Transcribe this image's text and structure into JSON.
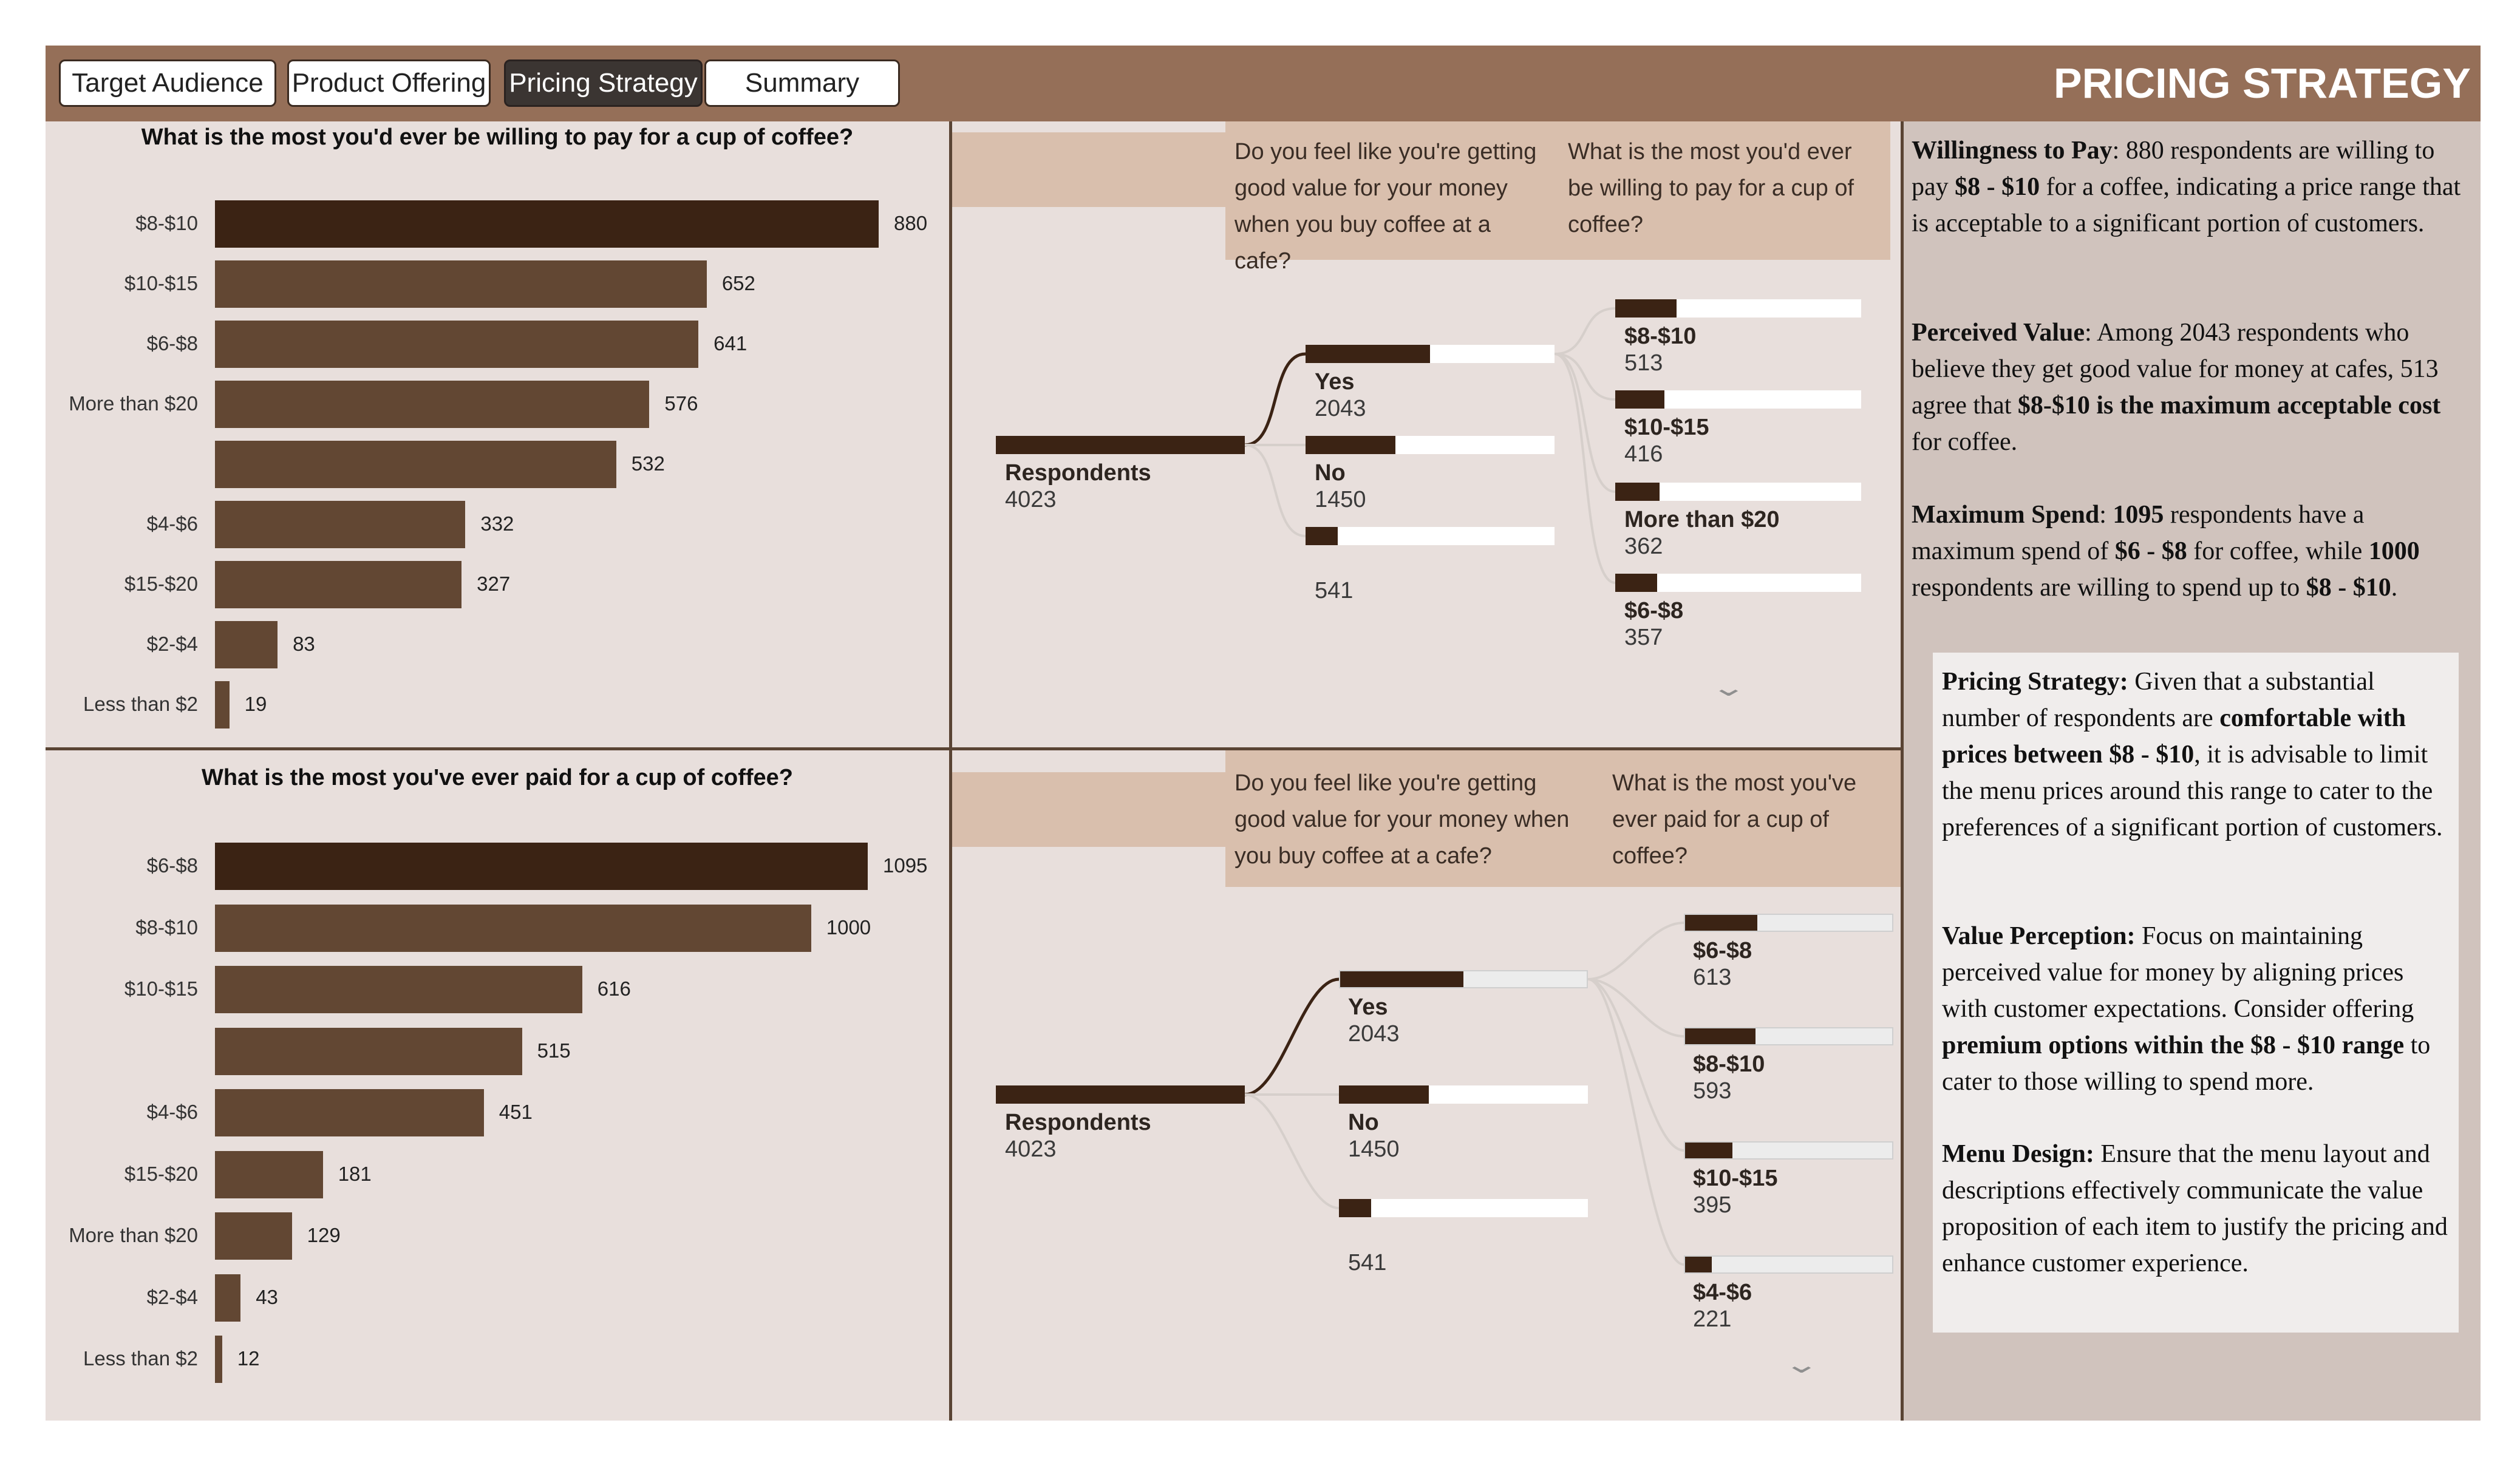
{
  "tabs": [
    {
      "label": "Target Audience",
      "active": false
    },
    {
      "label": "Product Offering",
      "active": false
    },
    {
      "label": "Pricing Strategy",
      "active": true
    },
    {
      "label": "Summary",
      "active": false
    }
  ],
  "page_title": "PRICING STRATEGY",
  "colors": {
    "header": "#956F58",
    "panel": "#E8DFDC",
    "sidebar": "#D0C3BD",
    "bar": "#624733",
    "bar_top": "#3B2314",
    "tree_header": "#D9BFAD"
  },
  "chart_data": [
    {
      "type": "bar",
      "title": "What is the most you'd ever be willing to pay for a cup of coffee?",
      "categories": [
        "$8-$10",
        "$10-$15",
        "$6-$8",
        "More than $20",
        "",
        "$4-$6",
        "$15-$20",
        "$2-$4",
        "Less than $2"
      ],
      "values": [
        880,
        652,
        641,
        576,
        532,
        332,
        327,
        83,
        19
      ],
      "orientation": "horizontal"
    },
    {
      "type": "bar",
      "title": "What is the most you've ever paid for a cup of coffee?",
      "categories": [
        "$6-$8",
        "$8-$10",
        "$10-$15",
        "",
        "$4-$6",
        "$15-$20",
        "More than $20",
        "$2-$4",
        "Less than $2"
      ],
      "values": [
        1095,
        1000,
        616,
        515,
        451,
        181,
        129,
        43,
        12
      ],
      "orientation": "horizontal"
    }
  ],
  "tree1": {
    "header_col1": "Do you feel like you're getting good value for your money when you buy coffee at a cafe?",
    "header_col2": "What is the most you'd ever be willing to pay for a cup of coffee?",
    "root": {
      "label": "Respondents",
      "value": "4023"
    },
    "level1": [
      {
        "label": "Yes",
        "value": "2043",
        "fraction": 0.5
      },
      {
        "label": "No",
        "value": "1450",
        "fraction": 0.36
      },
      {
        "label": "",
        "value": "541",
        "fraction": 0.13
      }
    ],
    "level2": [
      {
        "label": "$8-$10",
        "value": "513",
        "fraction": 0.25
      },
      {
        "label": "$10-$15",
        "value": "416",
        "fraction": 0.2
      },
      {
        "label": "More than $20",
        "value": "362",
        "fraction": 0.18
      },
      {
        "label": "$6-$8",
        "value": "357",
        "fraction": 0.17
      }
    ]
  },
  "tree2": {
    "header_col1": "Do you feel like you're getting good value for your money when you buy coffee at a cafe?",
    "header_col2": "What is the most you've ever paid for a cup of coffee?",
    "root": {
      "label": "Respondents",
      "value": "4023"
    },
    "level1": [
      {
        "label": "Yes",
        "value": "2043",
        "fraction": 0.5
      },
      {
        "label": "No",
        "value": "1450",
        "fraction": 0.36
      },
      {
        "label": "",
        "value": "541",
        "fraction": 0.13
      }
    ],
    "level2": [
      {
        "label": "$6-$8",
        "value": "613",
        "fraction": 0.35
      },
      {
        "label": "$8-$10",
        "value": "593",
        "fraction": 0.34
      },
      {
        "label": "$10-$15",
        "value": "395",
        "fraction": 0.23
      },
      {
        "label": "$4-$6",
        "value": "221",
        "fraction": 0.13
      }
    ]
  },
  "insights": {
    "wtp_title": "Willingness to Pay",
    "wtp_t1": ": 880 respondents are willing to pay ",
    "wtp_b1": "$8 - $10",
    "wtp_t2": " for a coffee, indicating a price range that is acceptable to a significant portion of customers.",
    "pv_title": "Perceived Value",
    "pv_t1": ": Among 2043 respondents who believe they get good value for money at cafes, 513 agree that ",
    "pv_b1": "$8-$10 is the maximum acceptable cost",
    "pv_t2": " for coffee.",
    "ms_title": "Maximum Spend",
    "ms_t1": ": ",
    "ms_b1": "1095",
    "ms_t2": " respondents have a maximum spend of ",
    "ms_b2": "$6 - $8",
    "ms_t3": " for coffee, while ",
    "ms_b3": "1000",
    "ms_t4": " respondents are willing to spend up to ",
    "ms_b4": "$8 - $10",
    "ms_t5": "."
  },
  "recommendations": {
    "ps_title": "Pricing Strategy:",
    "ps_t1": " Given that a substantial number of respondents are ",
    "ps_b1": "comfortable with prices between $8 - $10",
    "ps_t2": ", it is advisable to limit the menu prices around this range to cater to the preferences of a significant portion of customers.",
    "vp_title": "Value Perception:",
    "vp_t1": " Focus on maintaining perceived value for money by aligning prices with customer expectations. Consider offering ",
    "vp_b1": "premium options within the $8 - $10 range",
    "vp_t2": " to cater to those willing to spend more.",
    "md_title": "Menu Design:",
    "md_t1": " Ensure that the menu layout and descriptions effectively communicate the value proposition of each item to justify the pricing and enhance customer experience."
  }
}
